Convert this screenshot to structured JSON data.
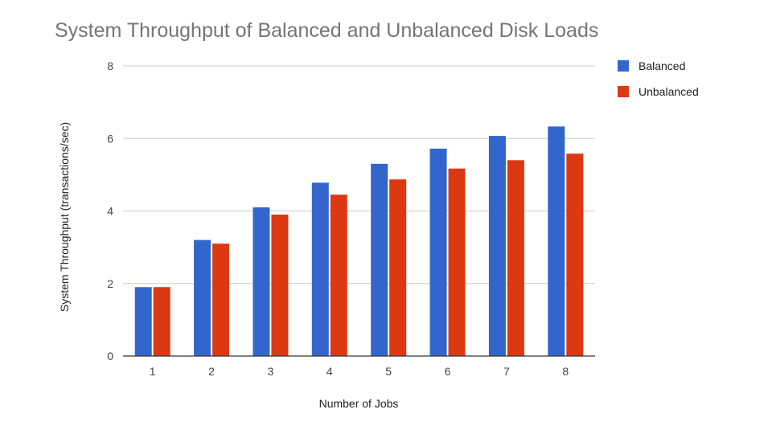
{
  "chart_data": {
    "type": "bar",
    "title": "System Throughput of Balanced and Unbalanced Disk Loads",
    "xlabel": "Number of Jobs",
    "ylabel": "System Throughput (transactions/sec)",
    "ylim": [
      0,
      8
    ],
    "yticks": [
      "0",
      "2",
      "4",
      "6",
      "8"
    ],
    "grid": true,
    "legend_position": "right",
    "categories": [
      "1",
      "2",
      "3",
      "4",
      "5",
      "6",
      "7",
      "8"
    ],
    "series": [
      {
        "name": "Balanced",
        "color": "#3366cc",
        "values": [
          1.9,
          3.2,
          4.1,
          4.78,
          5.3,
          5.72,
          6.07,
          6.33
        ]
      },
      {
        "name": "Unbalanced",
        "color": "#dc3912",
        "values": [
          1.9,
          3.1,
          3.9,
          4.45,
          4.87,
          5.17,
          5.4,
          5.58
        ]
      }
    ]
  }
}
